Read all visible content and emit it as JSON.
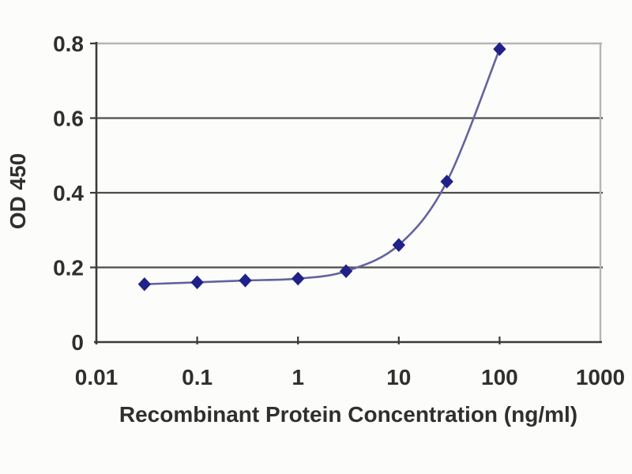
{
  "chart_data": {
    "type": "line",
    "x_scale": "log",
    "x": [
      0.03,
      0.1,
      0.3,
      1,
      3,
      10,
      30,
      100
    ],
    "y": [
      0.155,
      0.16,
      0.165,
      0.17,
      0.19,
      0.26,
      0.43,
      0.785
    ],
    "xlabel": "Recombinant Protein Concentration (ng/ml)",
    "ylabel": "OD 450",
    "xlim": [
      0.01,
      1000
    ],
    "ylim": [
      0,
      0.8
    ],
    "x_ticks": [
      0.01,
      0.1,
      1,
      10,
      100,
      1000
    ],
    "x_tick_labels": [
      "0.01",
      "0.1",
      "1",
      "10",
      "100",
      "1000"
    ],
    "y_ticks": [
      0,
      0.2,
      0.4,
      0.6,
      0.8
    ],
    "y_tick_labels": [
      "0",
      "0.2",
      "0.4",
      "0.6",
      "0.8"
    ],
    "grid": "horizontal",
    "legend": "none",
    "line_smoothing": true,
    "marker": "diamond",
    "colors": {
      "line": "#63639e",
      "marker": "#21218a",
      "gridline": "#4d4d4d",
      "axis": "#3a3a3a",
      "border_light": "#b5b5b5",
      "text": "#2f2f2f",
      "background": "#fcfcfa"
    }
  }
}
